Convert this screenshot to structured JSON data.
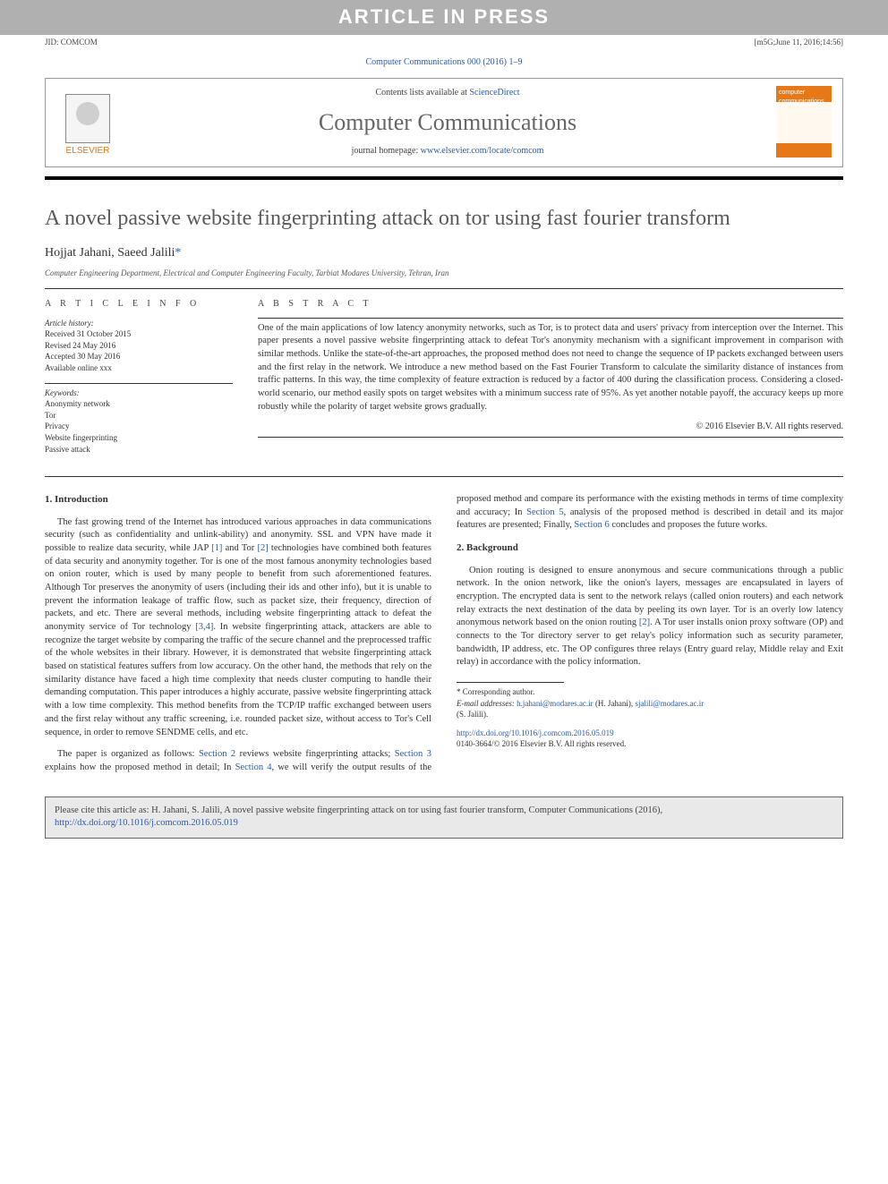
{
  "topbar": {
    "text": "ARTICLE IN PRESS"
  },
  "meta": {
    "jid": "JID: COMCOM",
    "stamp": "[m5G;June 11, 2016;14:56]"
  },
  "journal_ref": {
    "text": "Computer Communications 000 (2016) 1–9"
  },
  "header": {
    "contents_prefix": "Contents lists available at ",
    "contents_link": "ScienceDirect",
    "journal_name": "Computer Communications",
    "homepage_prefix": "journal homepage: ",
    "homepage_link": "www.elsevier.com/locate/comcom",
    "publisher_label": "ELSEVIER",
    "cover_label": "computer communications"
  },
  "article": {
    "title": "A novel passive website fingerprinting attack on tor using fast fourier transform",
    "authors": "Hojjat Jahani, Saeed Jalili",
    "corresponding_mark": "*",
    "affiliation": "Computer Engineering Department, Electrical and Computer Engineering Faculty, Tarbiat Modares University, Tehran, Iran"
  },
  "info": {
    "heading": "A R T I C L E   I N F O",
    "history_label": "Article history:",
    "received": "Received 31 October 2015",
    "revised": "Revised 24 May 2016",
    "accepted": "Accepted 30 May 2016",
    "available": "Available online xxx",
    "keywords_label": "Keywords:",
    "kw1": "Anonymity network",
    "kw2": "Tor",
    "kw3": "Privacy",
    "kw4": "Website fingerprinting",
    "kw5": "Passive attack"
  },
  "abstract": {
    "heading": "A B S T R A C T",
    "text": "One of the main applications of low latency anonymity networks, such as Tor, is to protect data and users' privacy from interception over the Internet. This paper presents a novel passive website fingerprinting attack to defeat Tor's anonymity mechanism with a significant improvement in comparison with similar methods. Unlike the state-of-the-art approaches, the proposed method does not need to change the sequence of IP packets exchanged between users and the first relay in the network. We introduce a new method based on the Fast Fourier Transform to calculate the similarity distance of instances from traffic patterns. In this way, the time complexity of feature extraction is reduced by a factor of 400 during the classification process. Considering a closed-world scenario, our method easily spots on target websites with a minimum success rate of 95%. As yet another notable payoff, the accuracy keeps up more robustly while the polarity of target website grows gradually.",
    "copyright": "© 2016 Elsevier B.V. All rights reserved."
  },
  "sections": {
    "intro_heading": "1. Introduction",
    "intro_p1a": "The fast growing trend of the Internet has introduced various approaches in data communications security (such as confidentiality and unlink-ability) and anonymity. SSL and VPN have made it possible to realize data security, while JAP ",
    "ref1": "[1]",
    "intro_p1b": " and Tor ",
    "ref2": "[2]",
    "intro_p1c": " technologies have combined both features of data security and anonymity together. Tor is one of the most famous anonymity technologies based on onion router, which is used by many people to benefit from such aforementioned features. Although Tor preserves the anonymity of users (including their ids and other info), but it is unable to prevent the information leakage of traffic flow, such as packet size, their frequency, direction of packets, and etc. There are several methods, including website fingerprinting attack to defeat the anonymity service of Tor technology ",
    "ref34": "[3,4]",
    "intro_p1d": ". In website fingerprinting attack, attackers are able to recognize the target website by comparing the traffic of the secure channel and the preprocessed traffic of the whole websites in their library. However, it is demonstrated that website fingerprinting attack based on statistical features suffers from low accuracy. On the other hand, the methods that rely on the similarity distance have faced a high time complexity that needs cluster computing to handle their demanding computation. This paper introduces a highly accurate, passive website fingerprinting attack with a low time complexity. This method benefits from the TCP/IP traffic exchanged between users and the first relay without any traffic screening, i.e. rounded packet size, without access to Tor's Cell sequence, in order to remove SENDME cells, and etc.",
    "intro_p2a": "The paper is organized as follows: ",
    "sec2a": "Section 2",
    "intro_p2b": " reviews website fingerprinting attacks; ",
    "sec3a": "Section 3",
    "intro_p2c": " explains how the proposed method in detail; In ",
    "sec4a": "Section 4",
    "intro_p2d": ", we will verify the output results of the proposed method and compare its performance with the existing methods in terms of time complexity and accuracy; In ",
    "sec5a": "Section 5",
    "intro_p2e": ", analysis of the proposed method is described in detail and its major features are presented; Finally, ",
    "sec6a": "Section 6",
    "intro_p2f": " concludes and proposes the future works.",
    "bg_heading": "2. Background",
    "bg_p1a": "Onion routing is designed to ensure anonymous and secure communications through a public network. In the onion network, like the onion's layers, messages are encapsulated in layers of encryption. The encrypted data is sent to the network relays (called onion routers) and each network relay extracts the next destination of the data by peeling its own layer. Tor is an overly low latency anonymous network based on the onion routing ",
    "ref2b": "[2]",
    "bg_p1b": ". A Tor user installs onion proxy software (OP) and connects to the Tor directory server to get relay's policy information such as security parameter, bandwidth, IP address, etc. The OP configures three relays (Entry guard relay, Middle relay and Exit relay) in accordance with the policy information."
  },
  "footnotes": {
    "corr_label": "* Corresponding author.",
    "email_label": "E-mail addresses: ",
    "email1": "h.jahani@modares.ac.ir",
    "email1_who": " (H. Jahani), ",
    "email2": "sjalili@modares.ac.ir",
    "email2_who": " (S. Jalili)."
  },
  "doi": {
    "url": "http://dx.doi.org/10.1016/j.comcom.2016.05.019",
    "issn_line": "0140-3664/© 2016 Elsevier B.V. All rights reserved."
  },
  "citebox": {
    "prefix": "Please cite this article as: H. Jahani, S. Jalili, A novel passive website fingerprinting attack on tor using fast fourier transform, Computer Communications (2016), ",
    "link": "http://dx.doi.org/10.1016/j.comcom.2016.05.019"
  },
  "colors": {
    "link": "#2a5caa",
    "topbar_bg": "#b0b0b0",
    "accent_orange": "#e67817",
    "citebox_bg": "#e9e9e9"
  }
}
